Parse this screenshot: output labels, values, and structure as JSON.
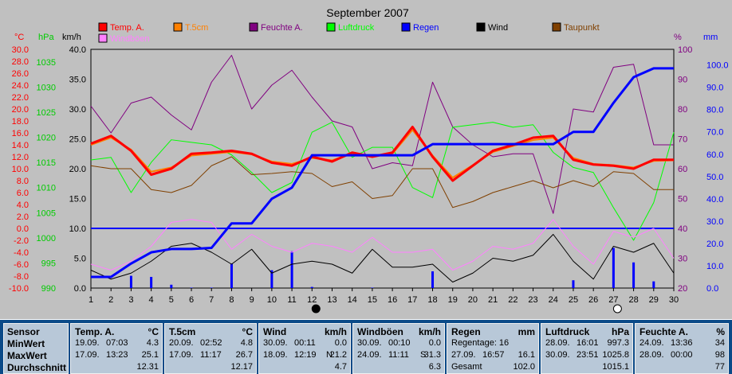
{
  "chart_data": {
    "type": "line",
    "title": "September 2007",
    "x": [
      1,
      2,
      3,
      4,
      5,
      6,
      7,
      8,
      9,
      10,
      11,
      12,
      13,
      14,
      15,
      16,
      17,
      18,
      19,
      20,
      21,
      22,
      23,
      24,
      25,
      26,
      27,
      28,
      29,
      30
    ],
    "axes": {
      "temp_c": {
        "unit": "°C",
        "min": -10,
        "max": 30,
        "ticks": [
          "30.0",
          "28.0",
          "26.0",
          "24.0",
          "22.0",
          "20.0",
          "18.0",
          "16.0",
          "14.0",
          "12.0",
          "10.0",
          "8.0",
          "6.0",
          "4.0",
          "2.0",
          "0.0",
          "-2.0",
          "-4.0",
          "-6.0",
          "-8.0",
          "-10.0"
        ]
      },
      "pressure_hpa": {
        "unit": "hPa",
        "min": 990,
        "max": 1037.5,
        "ticks": [
          "1035",
          "1030",
          "1025",
          "1020",
          "1015",
          "1010",
          "1005",
          "1000",
          "995",
          "990"
        ]
      },
      "speed_kmh": {
        "unit": "km/h",
        "min": 0,
        "max": 40,
        "ticks": [
          "40.0",
          "35.0",
          "30.0",
          "25.0",
          "20.0",
          "15.0",
          "10.0",
          "5.0",
          "0.0"
        ]
      },
      "humidity_pct": {
        "unit": "%",
        "min": 20,
        "max": 100,
        "ticks": [
          "100",
          "90",
          "80",
          "70",
          "60",
          "50",
          "40",
          "30",
          "20"
        ]
      },
      "rain_mm": {
        "unit": "mm",
        "min": 0,
        "max": 107,
        "ticks": [
          "100.0",
          "90.0",
          "80.0",
          "70.0",
          "60.0",
          "50.0",
          "40.0",
          "30.0",
          "20.0",
          "10.0",
          "0.0"
        ]
      }
    },
    "legend": [
      {
        "name": "Temp. A.",
        "color": "#ff0000"
      },
      {
        "name": "T.5cm",
        "color": "#ff8000"
      },
      {
        "name": "Feuchte A.",
        "color": "#800080"
      },
      {
        "name": "Luftdruck",
        "color": "#00ff00"
      },
      {
        "name": "Regen",
        "color": "#0000ff"
      },
      {
        "name": "Wind",
        "color": "#000000"
      },
      {
        "name": "Taupunkt",
        "color": "#804000"
      },
      {
        "name": "Windböen",
        "color": "#ff80ff"
      }
    ],
    "series": [
      {
        "name": "Temp. A.",
        "axis": "temp_c",
        "color": "#ff0000",
        "width": 3,
        "values": [
          14.2,
          15.5,
          13.0,
          9.0,
          10.0,
          12.5,
          12.7,
          13.0,
          12.5,
          11.0,
          10.5,
          12.0,
          11.2,
          12.7,
          12.0,
          12.7,
          17.0,
          12.0,
          8.0,
          10.5,
          13.0,
          14.0,
          15.2,
          15.5,
          11.5,
          10.7,
          10.5,
          10.0,
          11.5,
          11.5
        ]
      },
      {
        "name": "T.5cm",
        "axis": "temp_c",
        "color": "#ff8000",
        "width": 2,
        "values": [
          14.0,
          15.2,
          13.2,
          9.5,
          10.2,
          12.2,
          12.5,
          12.8,
          12.4,
          11.2,
          10.8,
          11.8,
          11.4,
          12.5,
          12.2,
          12.5,
          16.5,
          12.2,
          8.5,
          10.6,
          12.8,
          13.8,
          14.8,
          15.2,
          11.8,
          10.8,
          10.6,
          10.2,
          11.3,
          11.4
        ]
      },
      {
        "name": "Feuchte A.",
        "axis": "humidity_pct",
        "color": "#800080",
        "width": 1,
        "values": [
          81,
          72,
          82,
          84,
          78,
          73,
          89,
          98,
          80,
          88,
          93,
          84,
          76,
          74,
          60,
          62,
          61,
          89,
          74,
          68,
          64,
          65,
          65,
          45,
          80,
          79,
          94,
          95,
          68,
          68
        ]
      },
      {
        "name": "Luftdruck",
        "axis": "pressure_hpa",
        "color": "#00ff00",
        "width": 1,
        "values": [
          1015.5,
          1016,
          1009,
          1015,
          1019.5,
          1019,
          1018.5,
          1016.5,
          1013,
          1009,
          1011,
          1021,
          1023,
          1016,
          1018,
          1018,
          1010,
          1008,
          1022,
          1022.5,
          1023,
          1022,
          1022.5,
          1017,
          1014,
          1013,
          1006,
          999.5,
          1007,
          1021
        ]
      },
      {
        "name": "Regen",
        "axis": "rain_mm",
        "color": "#0000ff",
        "width": 3,
        "values": [
          5.0,
          5.0,
          11.0,
          16.0,
          17.5,
          17.5,
          18.0,
          29.0,
          29.0,
          40.0,
          45.0,
          59.5,
          59.5,
          59.5,
          59.5,
          59.5,
          59.5,
          64.5,
          64.5,
          64.5,
          64.5,
          64.5,
          64.5,
          64.5,
          70.0,
          70.0,
          83.0,
          94.5,
          98.5,
          98.5
        ]
      },
      {
        "name": "Wind",
        "axis": "speed_kmh",
        "color": "#000000",
        "width": 1,
        "values": [
          3.0,
          1.5,
          2.5,
          4.5,
          7.0,
          7.5,
          6.0,
          4.0,
          6.5,
          2.5,
          4.0,
          4.5,
          4.0,
          2.5,
          6.5,
          3.5,
          3.5,
          4.0,
          1.0,
          2.5,
          5.0,
          4.5,
          5.5,
          9.0,
          4.5,
          1.5,
          7.0,
          6.0,
          7.5,
          2.5
        ]
      },
      {
        "name": "Taupunkt",
        "axis": "temp_c",
        "color": "#804000",
        "width": 1,
        "values": [
          10.5,
          10.0,
          10.0,
          6.5,
          6.0,
          7.2,
          10.5,
          12.0,
          9.0,
          9.2,
          9.5,
          9.2,
          7.0,
          7.8,
          5.0,
          5.5,
          10.0,
          10.0,
          3.5,
          4.5,
          6.0,
          7.0,
          8.0,
          6.8,
          8.0,
          7.0,
          9.5,
          9.2,
          6.5,
          6.5
        ]
      },
      {
        "name": "Windböen",
        "axis": "speed_kmh",
        "color": "#ff80ff",
        "width": 1,
        "values": [
          4.0,
          3.0,
          4.5,
          7.0,
          11.0,
          11.5,
          11.0,
          6.5,
          9.0,
          7.0,
          6.0,
          7.5,
          7.0,
          6.0,
          8.5,
          6.0,
          6.0,
          6.5,
          3.0,
          4.5,
          7.0,
          6.5,
          7.5,
          11.5,
          7.0,
          4.0,
          9.5,
          8.5,
          10.0,
          5.0
        ]
      }
    ],
    "rain_daily": {
      "axis": "rain_mm",
      "color": "#0000ff",
      "values": [
        0,
        0,
        5.5,
        5.0,
        1.5,
        0.2,
        0.2,
        11.0,
        0,
        8.0,
        16.5,
        0.5,
        0,
        0,
        0.2,
        0,
        0,
        7.5,
        0,
        0,
        0,
        0,
        0,
        0,
        3.5,
        0,
        18.0,
        11.5,
        3.0,
        0
      ]
    },
    "reference_line": {
      "axis": "speed_kmh",
      "value": 10.0,
      "color": "#0000ff"
    },
    "day_markers": [
      {
        "day": 12,
        "kind": "new-moon"
      },
      {
        "day": 27,
        "kind": "full-moon"
      }
    ],
    "grid": false
  },
  "axis_units": {
    "temp": "°C",
    "pressure": "hPa",
    "speed": "km/h",
    "humidity": "%",
    "rain": "mm"
  },
  "stats": {
    "sensor": {
      "h": "Sensor",
      "min": "MinWert",
      "max": "MaxWert",
      "avg": "Durchschnitt"
    },
    "temp": {
      "h": "Temp. A.",
      "u": "°C",
      "min_d": "19.09.",
      "min_t": "07:03",
      "min_v": "4.3",
      "max_d": "17.09.",
      "max_t": "13:23",
      "max_v": "25.1",
      "avg": "12.31"
    },
    "t5": {
      "h": "T.5cm",
      "u": "°C",
      "min_d": "20.09.",
      "min_t": "02:52",
      "min_v": "4.8",
      "max_d": "17.09.",
      "max_t": "11:17",
      "max_v": "26.7",
      "avg": "12.17"
    },
    "wind": {
      "h": "Wind",
      "u": "km/h",
      "min_d": "30.09.",
      "min_t": "00:11",
      "min_v": "0.0",
      "max_d": "18.09.",
      "max_t": "12:19",
      "max_dir": "N",
      "max_v": "21.2",
      "avg": "4.7"
    },
    "gust": {
      "h": "Windböen",
      "u": "km/h",
      "min_d": "30.09.",
      "min_t": "00:10",
      "min_v": "0.0",
      "max_d": "24.09.",
      "max_t": "11:11",
      "max_dir": "S",
      "max_v": "31.3",
      "avg": "6.3"
    },
    "rain": {
      "h": "Regen",
      "u": "mm",
      "l1": "Regentage: 16",
      "max_d": "27.09.",
      "max_t": "16:57",
      "max_v": "16.1",
      "l3": "Gesamt",
      "total": "102.0"
    },
    "press": {
      "h": "Luftdruck",
      "u": "hPa",
      "min_d": "28.09.",
      "min_t": "16:01",
      "min_v": "997.3",
      "max_d": "30.09.",
      "max_t": "23:51",
      "max_v": "1025.8",
      "avg": "1015.1"
    },
    "hum": {
      "h": "Feuchte A.",
      "u": "%",
      "min_d": "24.09.",
      "min_t": "13:36",
      "min_v": "34",
      "max_d": "28.09.",
      "max_t": "00:00",
      "max_v": "98",
      "avg": "77"
    }
  }
}
